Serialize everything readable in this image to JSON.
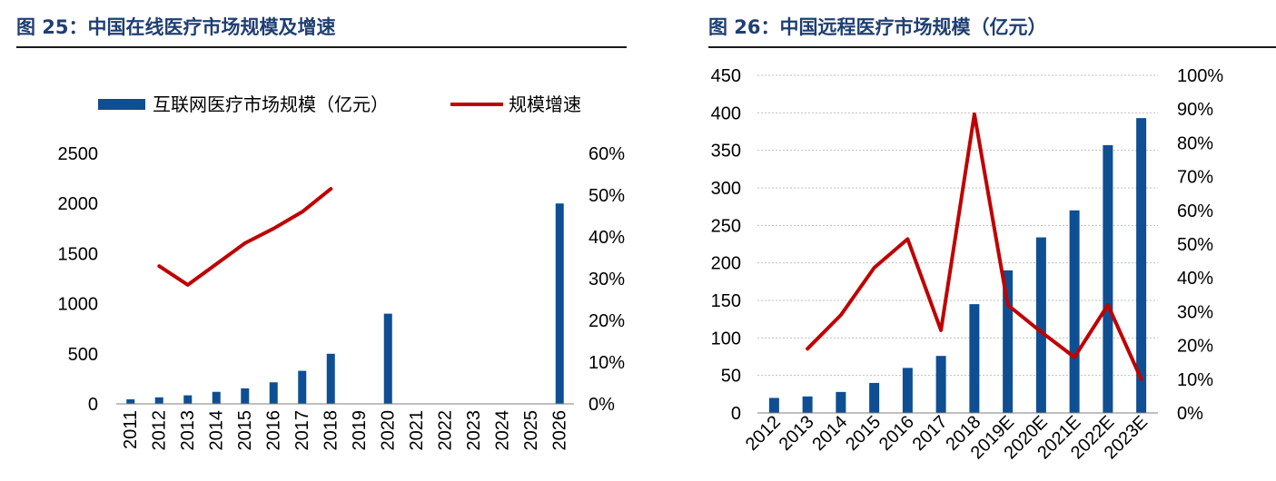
{
  "colors": {
    "bar": "#0e4f93",
    "line": "#c00000",
    "title": "#1f3f73",
    "grid": "#bfbfbf"
  },
  "chart_data": [
    {
      "type": "bar",
      "title": "图 25：中国在线医疗市场规模及增速",
      "legend": {
        "position": "top",
        "entries": [
          "互联网医疗市场规模（亿元）",
          "规模增速"
        ]
      },
      "categories": [
        "2011",
        "2012",
        "2013",
        "2014",
        "2015",
        "2016",
        "2017",
        "2018",
        "2019",
        "2020",
        "2021",
        "2022",
        "2023",
        "2024",
        "2025",
        "2026"
      ],
      "series": [
        {
          "name": "互联网医疗市场规模（亿元）",
          "type": "bar",
          "axis": "left",
          "values": [
            45,
            65,
            85,
            120,
            155,
            215,
            330,
            500,
            null,
            900,
            null,
            null,
            null,
            null,
            null,
            2000
          ]
        },
        {
          "name": "规模增速",
          "type": "line",
          "axis": "right",
          "values": [
            null,
            33,
            28.5,
            33.5,
            38.5,
            42,
            46,
            51.5,
            null,
            null,
            null,
            null,
            null,
            null,
            null,
            null
          ]
        }
      ],
      "ylim": [
        0,
        2500
      ],
      "y_ticks": [
        "0",
        "500",
        "1000",
        "1500",
        "2000",
        "2500"
      ],
      "y2lim": [
        0,
        60
      ],
      "y2_ticks": [
        "0%",
        "10%",
        "20%",
        "30%",
        "40%",
        "50%",
        "60%"
      ],
      "grid": false
    },
    {
      "type": "bar",
      "title": "图 26：中国远程医疗市场规模（亿元）",
      "legend": null,
      "categories": [
        "2012",
        "2013",
        "2014",
        "2015",
        "2016",
        "2017",
        "2018",
        "2019E",
        "2020E",
        "2021E",
        "2022E",
        "2023E"
      ],
      "series": [
        {
          "type": "bar",
          "axis": "left",
          "values": [
            20,
            22,
            28,
            40,
            60,
            76,
            145,
            190,
            234,
            270,
            357,
            393
          ]
        },
        {
          "type": "line",
          "axis": "right",
          "values": [
            null,
            19,
            29,
            43,
            51.5,
            24.5,
            88.5,
            32,
            24,
            16.5,
            32,
            10
          ]
        }
      ],
      "ylim": [
        0,
        450
      ],
      "y_ticks": [
        "0",
        "50",
        "100",
        "150",
        "200",
        "250",
        "300",
        "350",
        "400",
        "450"
      ],
      "y2lim": [
        0,
        100
      ],
      "y2_ticks": [
        "0%",
        "10%",
        "20%",
        "30%",
        "40%",
        "50%",
        "60%",
        "70%",
        "80%",
        "90%",
        "100%"
      ],
      "grid": true
    }
  ]
}
